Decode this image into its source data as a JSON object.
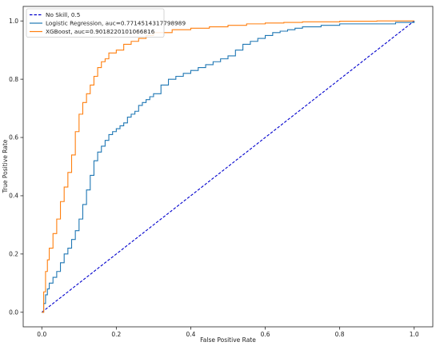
{
  "chart_data": {
    "type": "line",
    "title": "",
    "xlabel": "False Positive Rate",
    "ylabel": "True Positive Rate",
    "xlim": [
      -0.05,
      1.05
    ],
    "ylim": [
      -0.05,
      1.05
    ],
    "xticks": [
      "0.0",
      "0.2",
      "0.4",
      "0.6",
      "0.8",
      "1.0"
    ],
    "yticks": [
      "0.0",
      "0.2",
      "0.4",
      "0.6",
      "0.8",
      "1.0"
    ],
    "grid": false,
    "legend_position": "top-left",
    "series": [
      {
        "name": "No Skill, 0.5",
        "color": "#0000cd",
        "style": "dashed",
        "x": [
          0,
          1
        ],
        "y": [
          0,
          1
        ]
      },
      {
        "name": "Logistic Regression, auc=0.7714514317798989",
        "color": "#1f77b4",
        "style": "solid",
        "step": true,
        "x": [
          0,
          0.005,
          0.01,
          0.015,
          0.02,
          0.03,
          0.04,
          0.05,
          0.06,
          0.07,
          0.08,
          0.09,
          0.1,
          0.11,
          0.12,
          0.13,
          0.14,
          0.15,
          0.16,
          0.17,
          0.18,
          0.19,
          0.2,
          0.21,
          0.22,
          0.23,
          0.24,
          0.25,
          0.26,
          0.27,
          0.28,
          0.29,
          0.3,
          0.32,
          0.34,
          0.36,
          0.38,
          0.4,
          0.42,
          0.44,
          0.46,
          0.48,
          0.5,
          0.52,
          0.54,
          0.56,
          0.58,
          0.6,
          0.62,
          0.64,
          0.66,
          0.68,
          0.7,
          0.75,
          0.8,
          0.85,
          0.9,
          0.95,
          1.0
        ],
        "y": [
          0,
          0.03,
          0.06,
          0.08,
          0.1,
          0.12,
          0.14,
          0.17,
          0.2,
          0.22,
          0.25,
          0.28,
          0.32,
          0.37,
          0.42,
          0.47,
          0.52,
          0.55,
          0.57,
          0.59,
          0.61,
          0.62,
          0.63,
          0.64,
          0.65,
          0.67,
          0.68,
          0.69,
          0.71,
          0.72,
          0.73,
          0.74,
          0.75,
          0.78,
          0.8,
          0.81,
          0.82,
          0.83,
          0.84,
          0.85,
          0.86,
          0.87,
          0.88,
          0.9,
          0.92,
          0.93,
          0.94,
          0.95,
          0.96,
          0.965,
          0.97,
          0.975,
          0.98,
          0.985,
          0.99,
          0.99,
          0.99,
          0.995,
          1.0
        ]
      },
      {
        "name": "XGBoost, auc=0.9018220101066816",
        "color": "#ff7f0e",
        "style": "solid",
        "step": true,
        "x": [
          0,
          0.005,
          0.01,
          0.015,
          0.02,
          0.03,
          0.04,
          0.05,
          0.06,
          0.07,
          0.08,
          0.09,
          0.1,
          0.11,
          0.12,
          0.13,
          0.14,
          0.15,
          0.16,
          0.17,
          0.18,
          0.2,
          0.22,
          0.24,
          0.26,
          0.28,
          0.3,
          0.35,
          0.4,
          0.45,
          0.5,
          0.55,
          0.6,
          0.65,
          0.7,
          0.8,
          0.9,
          1.0
        ],
        "y": [
          0,
          0.07,
          0.14,
          0.18,
          0.22,
          0.27,
          0.32,
          0.38,
          0.43,
          0.48,
          0.54,
          0.62,
          0.68,
          0.72,
          0.75,
          0.78,
          0.81,
          0.84,
          0.86,
          0.87,
          0.89,
          0.9,
          0.92,
          0.93,
          0.94,
          0.95,
          0.96,
          0.97,
          0.975,
          0.98,
          0.985,
          0.99,
          0.993,
          0.995,
          0.997,
          0.999,
          1.0,
          1.0
        ]
      }
    ]
  }
}
